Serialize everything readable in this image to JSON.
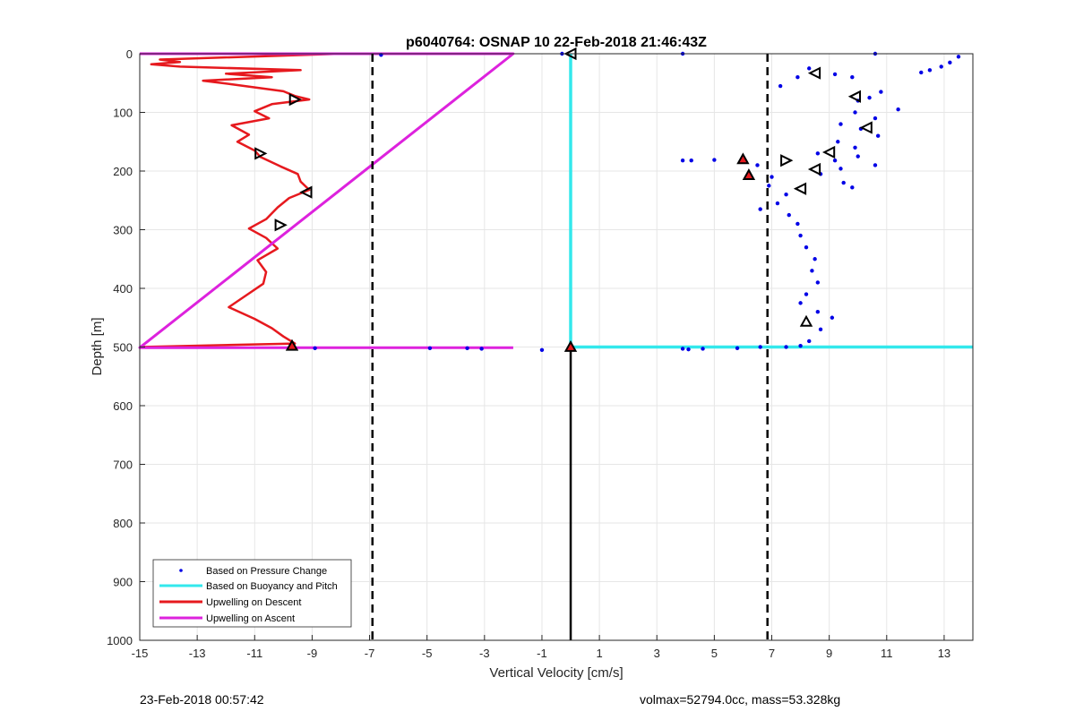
{
  "chart_data": {
    "type": "line",
    "title": "p6040764: OSNAP 10 22-Feb-2018 21:46:43Z",
    "xlabel": "Vertical Velocity [cm/s]",
    "ylabel": "Depth [m]",
    "xlim": [
      -15,
      14
    ],
    "ylim": [
      1000,
      0
    ],
    "y_reversed": true,
    "grid": true,
    "xticks": [
      -15,
      -13,
      -11,
      -9,
      -7,
      -5,
      -3,
      -1,
      1,
      3,
      5,
      7,
      9,
      11,
      13
    ],
    "yticks": [
      0,
      100,
      200,
      300,
      400,
      500,
      600,
      700,
      800,
      900,
      1000
    ],
    "legend_placement": "bottom-left",
    "colors": {
      "pressure": "#0000e6",
      "buoyancy": "#33e8ec",
      "descent": "#e6191e",
      "ascent": "#dd22dd",
      "markers_fill": "#e6191e"
    },
    "series": [
      {
        "name": "Based on Pressure Change",
        "style": "dots",
        "points": [
          [
            -6.6,
            2
          ],
          [
            -0.3,
            0
          ],
          [
            3.9,
            0
          ],
          [
            13.5,
            5
          ],
          [
            13.2,
            15
          ],
          [
            12.9,
            22
          ],
          [
            12.5,
            28
          ],
          [
            12.2,
            32
          ],
          [
            10.6,
            0
          ],
          [
            8.3,
            25
          ],
          [
            7.9,
            40
          ],
          [
            7.3,
            55
          ],
          [
            9.2,
            35
          ],
          [
            9.8,
            40
          ],
          [
            10.8,
            65
          ],
          [
            10.4,
            75
          ],
          [
            10.0,
            80
          ],
          [
            11.4,
            95
          ],
          [
            9.9,
            100
          ],
          [
            10.6,
            110
          ],
          [
            9.4,
            120
          ],
          [
            10.1,
            128
          ],
          [
            10.7,
            140
          ],
          [
            9.3,
            150
          ],
          [
            9.9,
            160
          ],
          [
            8.6,
            170
          ],
          [
            10.0,
            175
          ],
          [
            9.2,
            182
          ],
          [
            10.6,
            190
          ],
          [
            9.4,
            196
          ],
          [
            8.7,
            205
          ],
          [
            9.5,
            220
          ],
          [
            9.8,
            228
          ],
          [
            3.9,
            182
          ],
          [
            4.2,
            182
          ],
          [
            5.0,
            181
          ],
          [
            6.5,
            190
          ],
          [
            7.0,
            210
          ],
          [
            6.9,
            225
          ],
          [
            7.5,
            240
          ],
          [
            7.2,
            255
          ],
          [
            6.6,
            265
          ],
          [
            7.6,
            275
          ],
          [
            7.9,
            290
          ],
          [
            8.0,
            310
          ],
          [
            8.2,
            330
          ],
          [
            8.5,
            350
          ],
          [
            8.4,
            370
          ],
          [
            8.6,
            390
          ],
          [
            8.2,
            410
          ],
          [
            8.0,
            425
          ],
          [
            8.6,
            440
          ],
          [
            9.1,
            450
          ],
          [
            8.7,
            470
          ],
          [
            8.3,
            490
          ],
          [
            8.0,
            498
          ],
          [
            -8.9,
            502
          ],
          [
            -4.9,
            502
          ],
          [
            -3.6,
            502
          ],
          [
            -3.1,
            503
          ],
          [
            -1.0,
            505
          ],
          [
            3.9,
            503
          ],
          [
            4.1,
            504
          ],
          [
            4.6,
            503
          ],
          [
            5.8,
            502
          ],
          [
            6.6,
            500
          ],
          [
            7.5,
            500
          ]
        ]
      },
      {
        "name": "Based on Buoyancy and Pitch",
        "style": "line",
        "points": [
          [
            0,
            0
          ],
          [
            0,
            500
          ],
          [
            14,
            500
          ]
        ]
      },
      {
        "name": "Upwelling on Descent",
        "style": "line",
        "points": [
          [
            -15,
            0
          ],
          [
            -8.0,
            0
          ],
          [
            -14.3,
            10
          ],
          [
            -13.6,
            14
          ],
          [
            -14.6,
            18
          ],
          [
            -13.6,
            22
          ],
          [
            -9.4,
            28
          ],
          [
            -12.0,
            34
          ],
          [
            -10.4,
            40
          ],
          [
            -12.8,
            46
          ],
          [
            -11.8,
            52
          ],
          [
            -10.0,
            64
          ],
          [
            -9.6,
            72
          ],
          [
            -9.1,
            78
          ],
          [
            -10.4,
            86
          ],
          [
            -11.0,
            98
          ],
          [
            -10.5,
            110
          ],
          [
            -11.8,
            122
          ],
          [
            -11.2,
            138
          ],
          [
            -11.6,
            150
          ],
          [
            -11.0,
            165
          ],
          [
            -10.8,
            176
          ],
          [
            -10.1,
            192
          ],
          [
            -9.5,
            205
          ],
          [
            -9.4,
            218
          ],
          [
            -9.1,
            232
          ],
          [
            -9.8,
            246
          ],
          [
            -10.2,
            262
          ],
          [
            -10.6,
            282
          ],
          [
            -11.2,
            298
          ],
          [
            -10.6,
            314
          ],
          [
            -10.2,
            332
          ],
          [
            -10.9,
            352
          ],
          [
            -10.6,
            372
          ],
          [
            -10.7,
            392
          ],
          [
            -11.3,
            412
          ],
          [
            -11.9,
            432
          ],
          [
            -11.0,
            452
          ],
          [
            -10.4,
            468
          ],
          [
            -10.0,
            482
          ],
          [
            -9.6,
            494
          ],
          [
            -15,
            500
          ]
        ]
      },
      {
        "name": "Upwelling on Ascent",
        "style": "line",
        "points": [
          [
            -15,
            0
          ],
          [
            -2,
            0
          ],
          [
            -15,
            501
          ],
          [
            -2,
            501
          ]
        ]
      }
    ],
    "reference_lines": [
      {
        "x": -6.9,
        "style": "dashed"
      },
      {
        "x": 6.85,
        "style": "dashed"
      },
      {
        "x": 0,
        "from_depth": 500,
        "to_depth": 1000,
        "style": "solid"
      }
    ],
    "triangle_markers": [
      {
        "x": 0,
        "y": 0,
        "dir": "left",
        "fill": false
      },
      {
        "x": -9.6,
        "y": 78,
        "dir": "right",
        "fill": false
      },
      {
        "x": -10.8,
        "y": 170,
        "dir": "right",
        "fill": false
      },
      {
        "x": -9.2,
        "y": 236,
        "dir": "left",
        "fill": false
      },
      {
        "x": -10.1,
        "y": 292,
        "dir": "right",
        "fill": false
      },
      {
        "x": -9.7,
        "y": 498,
        "dir": "up",
        "fill": true
      },
      {
        "x": 0,
        "y": 500,
        "dir": "up",
        "fill": true
      },
      {
        "x": 8.5,
        "y": 33,
        "dir": "left",
        "fill": false
      },
      {
        "x": 9.9,
        "y": 73,
        "dir": "left",
        "fill": false
      },
      {
        "x": 10.3,
        "y": 126,
        "dir": "left",
        "fill": false
      },
      {
        "x": 9.0,
        "y": 168,
        "dir": "left",
        "fill": false
      },
      {
        "x": 7.5,
        "y": 182,
        "dir": "right",
        "fill": false
      },
      {
        "x": 8.5,
        "y": 197,
        "dir": "left",
        "fill": false
      },
      {
        "x": 8.0,
        "y": 230,
        "dir": "left",
        "fill": false
      },
      {
        "x": 6.0,
        "y": 180,
        "dir": "up",
        "fill": true
      },
      {
        "x": 6.2,
        "y": 207,
        "dir": "up",
        "fill": true
      },
      {
        "x": 8.2,
        "y": 457,
        "dir": "up",
        "fill": false
      }
    ]
  },
  "footer": {
    "timestamp": "23-Feb-2018 00:57:42",
    "info": "volmax=52794.0cc, mass=53.328kg"
  }
}
